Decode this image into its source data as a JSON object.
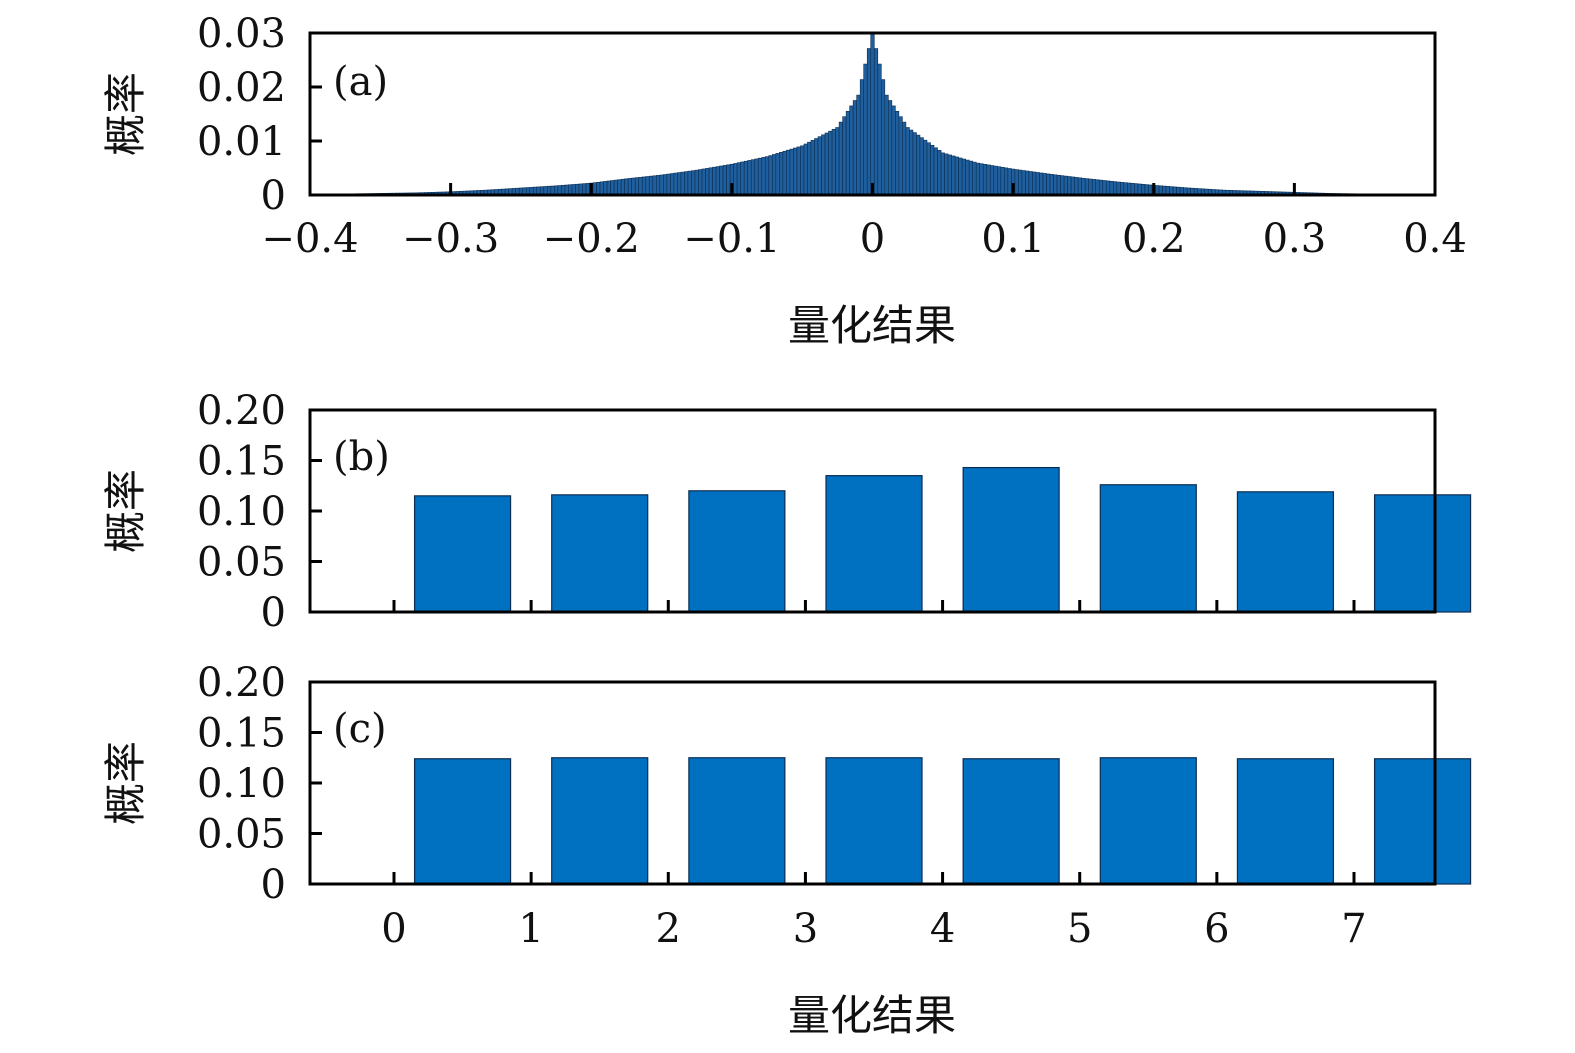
{
  "chart_data": [
    {
      "type": "bar",
      "panel_label": "(a)",
      "ylabel": "概率",
      "xlabel": "量化结果",
      "xlim": [
        -0.4,
        0.4
      ],
      "ylim": [
        0,
        0.03
      ],
      "xticks": [
        "−0.4",
        "−0.3",
        "−0.2",
        "−0.1",
        "0",
        "0.1",
        "0.2",
        "0.3",
        "0.4"
      ],
      "yticks": [
        "0",
        "0.01",
        "0.02",
        "0.03"
      ],
      "color": "#1f5f9e",
      "distribution": "laplacian-like, peaked at 0",
      "peak_value": 0.03,
      "bin_centers": [
        -0.375,
        -0.35,
        -0.325,
        -0.3,
        -0.275,
        -0.25,
        -0.225,
        -0.2,
        -0.175,
        -0.15,
        -0.125,
        -0.1,
        -0.075,
        -0.05,
        -0.025,
        -0.01,
        0,
        0.01,
        0.025,
        0.05,
        0.075,
        0.1,
        0.125,
        0.15,
        0.175,
        0.2,
        0.225,
        0.25,
        0.275,
        0.3,
        0.325,
        0.35,
        0.375
      ],
      "bin_values": [
        0.0002,
        0.0003,
        0.0004,
        0.0006,
        0.0009,
        0.0013,
        0.0017,
        0.0022,
        0.003,
        0.0037,
        0.0046,
        0.0057,
        0.0071,
        0.0091,
        0.0125,
        0.0185,
        0.03,
        0.0185,
        0.0125,
        0.0078,
        0.0059,
        0.0048,
        0.0039,
        0.0031,
        0.0024,
        0.0018,
        0.0013,
        0.0009,
        0.0007,
        0.0005,
        0.0003,
        0.0002,
        0.0001
      ]
    },
    {
      "type": "bar",
      "panel_label": "(b)",
      "ylabel": "概率",
      "xlim": [
        0,
        7
      ],
      "ylim": [
        0,
        0.2
      ],
      "yticks": [
        "0",
        "0.05",
        "0.10",
        "0.15",
        "0.20"
      ],
      "color": "#0070c0",
      "categories": [
        0,
        1,
        2,
        3,
        4,
        5,
        6,
        7
      ],
      "values": [
        0.115,
        0.116,
        0.12,
        0.135,
        0.143,
        0.126,
        0.119,
        0.116
      ]
    },
    {
      "type": "bar",
      "panel_label": "(c)",
      "ylabel": "概率",
      "xlabel": "量化结果",
      "xlim": [
        0,
        7
      ],
      "ylim": [
        0,
        0.2
      ],
      "xticks": [
        "0",
        "1",
        "2",
        "3",
        "4",
        "5",
        "6",
        "7"
      ],
      "yticks": [
        "0",
        "0.05",
        "0.10",
        "0.15",
        "0.20"
      ],
      "color": "#0070c0",
      "categories": [
        0,
        1,
        2,
        3,
        4,
        5,
        6,
        7
      ],
      "values": [
        0.124,
        0.125,
        0.125,
        0.125,
        0.124,
        0.125,
        0.124,
        0.124
      ]
    }
  ]
}
